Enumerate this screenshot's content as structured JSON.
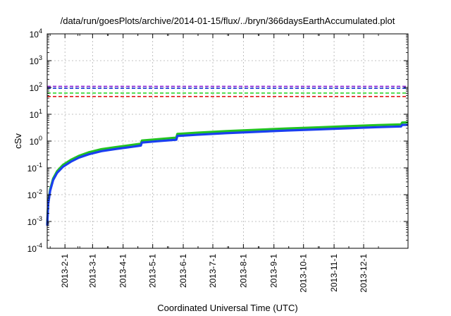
{
  "chart_data": {
    "type": "line",
    "title": "/data/run/goesPlots/archive/2014-01-15/flux/../bryn/366daysEarthAccumulated.plot",
    "xlabel": "Coordinated Universal Time (UTC)",
    "ylabel": "cSv",
    "yscale": "log",
    "ylim": [
      0.0001,
      10000
    ],
    "xlim": [
      "2013-01-14",
      "2014-01-15"
    ],
    "grid": true,
    "y_ticks": [
      {
        "base": "10",
        "exp": "-4",
        "value": 0.0001
      },
      {
        "base": "10",
        "exp": "-3",
        "value": 0.001
      },
      {
        "base": "10",
        "exp": "-2",
        "value": 0.01
      },
      {
        "base": "10",
        "exp": "-1",
        "value": 0.1
      },
      {
        "base": "10",
        "exp": "0",
        "value": 1
      },
      {
        "base": "10",
        "exp": "1",
        "value": 10
      },
      {
        "base": "10",
        "exp": "2",
        "value": 100
      },
      {
        "base": "10",
        "exp": "3",
        "value": 1000
      },
      {
        "base": "10",
        "exp": "4",
        "value": 10000
      }
    ],
    "x_ticks": [
      {
        "label": "2013-2-1",
        "date": "2013-02-01"
      },
      {
        "label": "2013-3-1",
        "date": "2013-03-01"
      },
      {
        "label": "2013-4-1",
        "date": "2013-04-01"
      },
      {
        "label": "2013-5-1",
        "date": "2013-05-01"
      },
      {
        "label": "2013-6-1",
        "date": "2013-06-01"
      },
      {
        "label": "2013-7-1",
        "date": "2013-07-01"
      },
      {
        "label": "2013-8-1",
        "date": "2013-08-01"
      },
      {
        "label": "2013-9-1",
        "date": "2013-09-01"
      },
      {
        "label": "2013-10-1",
        "date": "2013-10-01"
      },
      {
        "label": "2013-11-1",
        "date": "2013-11-01"
      },
      {
        "label": "2013-12-1",
        "date": "2013-12-01"
      }
    ],
    "reference_lines": [
      {
        "value": 110,
        "color": "#8b1fd6",
        "style": "dashed"
      },
      {
        "value": 93,
        "color": "#1f3fd6",
        "style": "dashed"
      },
      {
        "value": 62,
        "color": "#2fd62f",
        "style": "dashed"
      },
      {
        "value": 46,
        "color": "#e01818",
        "style": "dashed"
      }
    ],
    "series": [
      {
        "color": "#22c322",
        "points": [
          [
            "2013-01-14",
            0.0008
          ],
          [
            "2013-01-15",
            0.005
          ],
          [
            "2013-01-17",
            0.016
          ],
          [
            "2013-01-20",
            0.04
          ],
          [
            "2013-01-24",
            0.075
          ],
          [
            "2013-01-30",
            0.13
          ],
          [
            "2013-02-07",
            0.2
          ],
          [
            "2013-02-15",
            0.28
          ],
          [
            "2013-02-25",
            0.38
          ],
          [
            "2013-03-10",
            0.5
          ],
          [
            "2013-03-25",
            0.6
          ],
          [
            "2013-04-10",
            0.72
          ],
          [
            "2013-04-19",
            0.8
          ],
          [
            "2013-04-20",
            1.05
          ],
          [
            "2013-05-05",
            1.17
          ],
          [
            "2013-05-25",
            1.35
          ],
          [
            "2013-05-26",
            1.85
          ],
          [
            "2013-06-15",
            2.05
          ],
          [
            "2013-07-15",
            2.35
          ],
          [
            "2013-08-15",
            2.65
          ],
          [
            "2013-09-15",
            2.95
          ],
          [
            "2013-10-15",
            3.25
          ],
          [
            "2013-11-15",
            3.6
          ],
          [
            "2013-12-15",
            3.95
          ],
          [
            "2014-01-08",
            4.2
          ],
          [
            "2014-01-09",
            4.9
          ],
          [
            "2014-01-15",
            5.0
          ]
        ]
      },
      {
        "color": "#1a3ff0",
        "points": [
          [
            "2013-01-14",
            0.0007
          ],
          [
            "2013-01-15",
            0.0045
          ],
          [
            "2013-01-17",
            0.014
          ],
          [
            "2013-01-20",
            0.035
          ],
          [
            "2013-01-24",
            0.065
          ],
          [
            "2013-01-30",
            0.11
          ],
          [
            "2013-02-07",
            0.17
          ],
          [
            "2013-02-15",
            0.24
          ],
          [
            "2013-02-25",
            0.32
          ],
          [
            "2013-03-10",
            0.42
          ],
          [
            "2013-03-25",
            0.51
          ],
          [
            "2013-04-10",
            0.61
          ],
          [
            "2013-04-19",
            0.68
          ],
          [
            "2013-04-20",
            0.88
          ],
          [
            "2013-05-05",
            0.98
          ],
          [
            "2013-05-25",
            1.12
          ],
          [
            "2013-05-26",
            1.55
          ],
          [
            "2013-06-15",
            1.72
          ],
          [
            "2013-07-15",
            1.98
          ],
          [
            "2013-08-15",
            2.22
          ],
          [
            "2013-09-15",
            2.48
          ],
          [
            "2013-10-15",
            2.72
          ],
          [
            "2013-11-15",
            3.0
          ],
          [
            "2013-12-15",
            3.3
          ],
          [
            "2014-01-08",
            3.5
          ],
          [
            "2014-01-09",
            4.0
          ],
          [
            "2014-01-15",
            4.05
          ]
        ]
      }
    ]
  }
}
